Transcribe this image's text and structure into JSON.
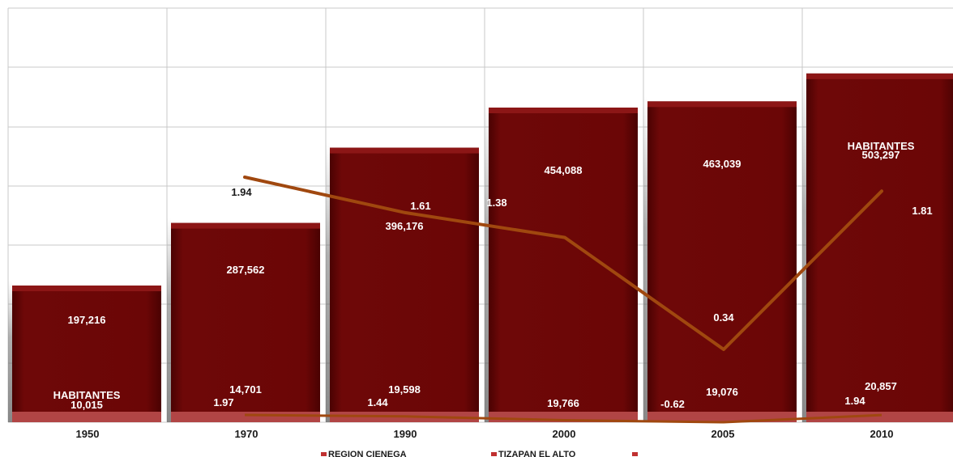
{
  "chart_data": {
    "type": "bar",
    "title": "",
    "xlabel": "",
    "ylabel": "",
    "grid": true,
    "categories": [
      "1950",
      "1970",
      "1990",
      "2000",
      "2005",
      "2010"
    ],
    "series": [
      {
        "name": "REGION CIENEGA",
        "type": "bar",
        "values": [
          197216,
          287562,
          396176,
          454088,
          463039,
          503297
        ],
        "labels": [
          "197,216",
          "287,562",
          "396,176",
          "454,088",
          "463,039",
          "503,297"
        ]
      },
      {
        "name": "TIZAPAN EL ALTO",
        "type": "bar",
        "values": [
          10015,
          14701,
          19598,
          19766,
          19076,
          20857
        ],
        "labels": [
          "10,015",
          "14,701",
          "19,598",
          "19,766",
          "19,076",
          "20,857"
        ]
      },
      {
        "name": "",
        "type": "line",
        "color": "#a0480f",
        "values": [
          null,
          1.94,
          1.61,
          1.38,
          0.34,
          1.81
        ],
        "labels": [
          "",
          "1.94",
          "1.61",
          "1.38",
          "0.34",
          "1.81"
        ]
      },
      {
        "name": "",
        "type": "line",
        "color": "#a0480f",
        "values": [
          null,
          1.97,
          1.44,
          0.1,
          -0.62,
          1.94
        ],
        "labels": [
          "",
          "1.97",
          "1.44",
          "",
          "-0.62",
          "1.94"
        ]
      }
    ],
    "annotations": [
      "HABITANTES",
      "HABITANTES"
    ],
    "legend": {
      "position": "bottom",
      "entries": [
        "REGION CIENEGA",
        "TIZAPAN EL ALTO",
        ""
      ]
    },
    "colors": {
      "bar": "#6b0606",
      "bar_top": "#8c1616",
      "bar_base": "#b14545",
      "line": "#a0480f",
      "grid": "#c8c8c8",
      "text_on_bar": "#ffffff",
      "text": "#1a1a1a",
      "legend_marker": "#c03030"
    }
  }
}
